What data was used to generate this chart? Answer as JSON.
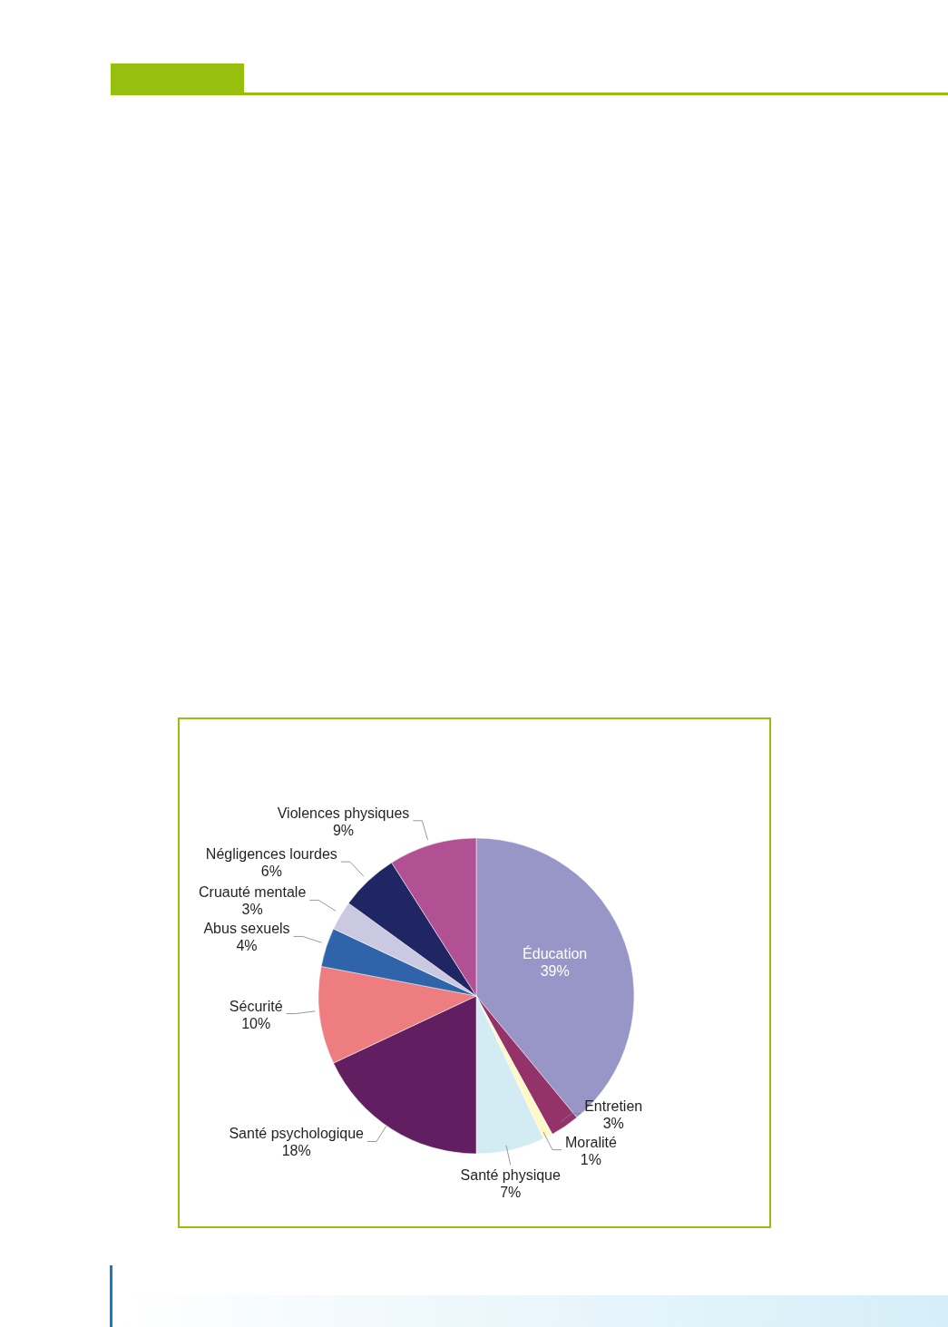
{
  "chart_data": {
    "type": "pie",
    "categories": [
      "Éducation",
      "Entretien",
      "Moralité",
      "Santé physique",
      "Santé psychologique",
      "Sécurité",
      "Abus sexuels",
      "Cruauté mentale",
      "Négligences lourdes",
      "Violences physiques"
    ],
    "values": [
      39,
      3,
      1,
      7,
      18,
      10,
      4,
      3,
      6,
      9
    ],
    "colors": [
      "#9896c6",
      "#93336a",
      "#fff9c8",
      "#d3ebf2",
      "#611f61",
      "#ee7d80",
      "#2f63aa",
      "#cbc8e1",
      "#1f2663",
      "#b15193"
    ],
    "value_labels": [
      "39%",
      "3%",
      "1%",
      "7%",
      "18%",
      "10%",
      "4%",
      "3%",
      "6%",
      "9%"
    ]
  }
}
